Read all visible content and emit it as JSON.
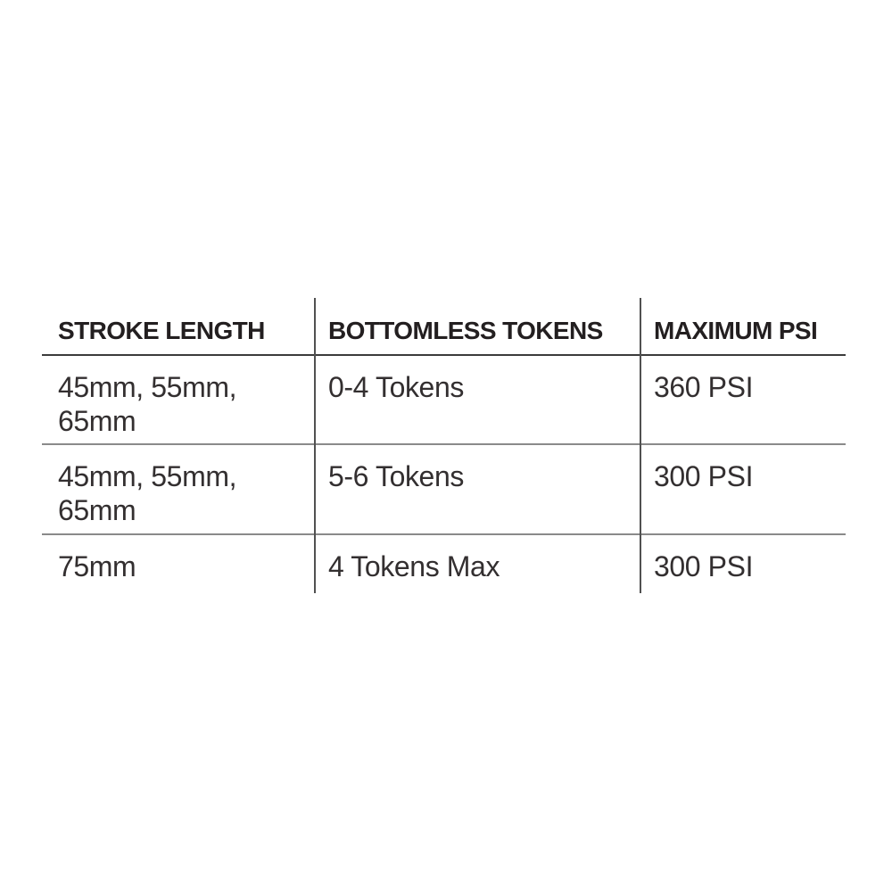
{
  "page": {
    "background_color": "#ffffff"
  },
  "table": {
    "title_semantic": "suspension-air-pressure-spec-table",
    "columns": [
      {
        "label": "STROKE LENGTH"
      },
      {
        "label": "BOTTOMLESS TOKENS"
      },
      {
        "label": "MAXIMUM PSI"
      }
    ],
    "rows": [
      {
        "stroke_length": "45mm, 55mm,\n65mm",
        "bottomless_tokens": "0-4 Tokens",
        "maximum_psi": "360 PSI"
      },
      {
        "stroke_length": "45mm, 55mm,\n65mm",
        "bottomless_tokens": "5-6 Tokens",
        "maximum_psi": "300 PSI"
      },
      {
        "stroke_length": "75mm",
        "bottomless_tokens": "4 Tokens Max",
        "maximum_psi": "300 PSI"
      }
    ],
    "colors": {
      "header_text": "#231f20",
      "body_text": "#332f30",
      "header_rule": "#3b3b3b",
      "row_rule": "#8a8a8a",
      "column_divider": "#515151"
    }
  }
}
